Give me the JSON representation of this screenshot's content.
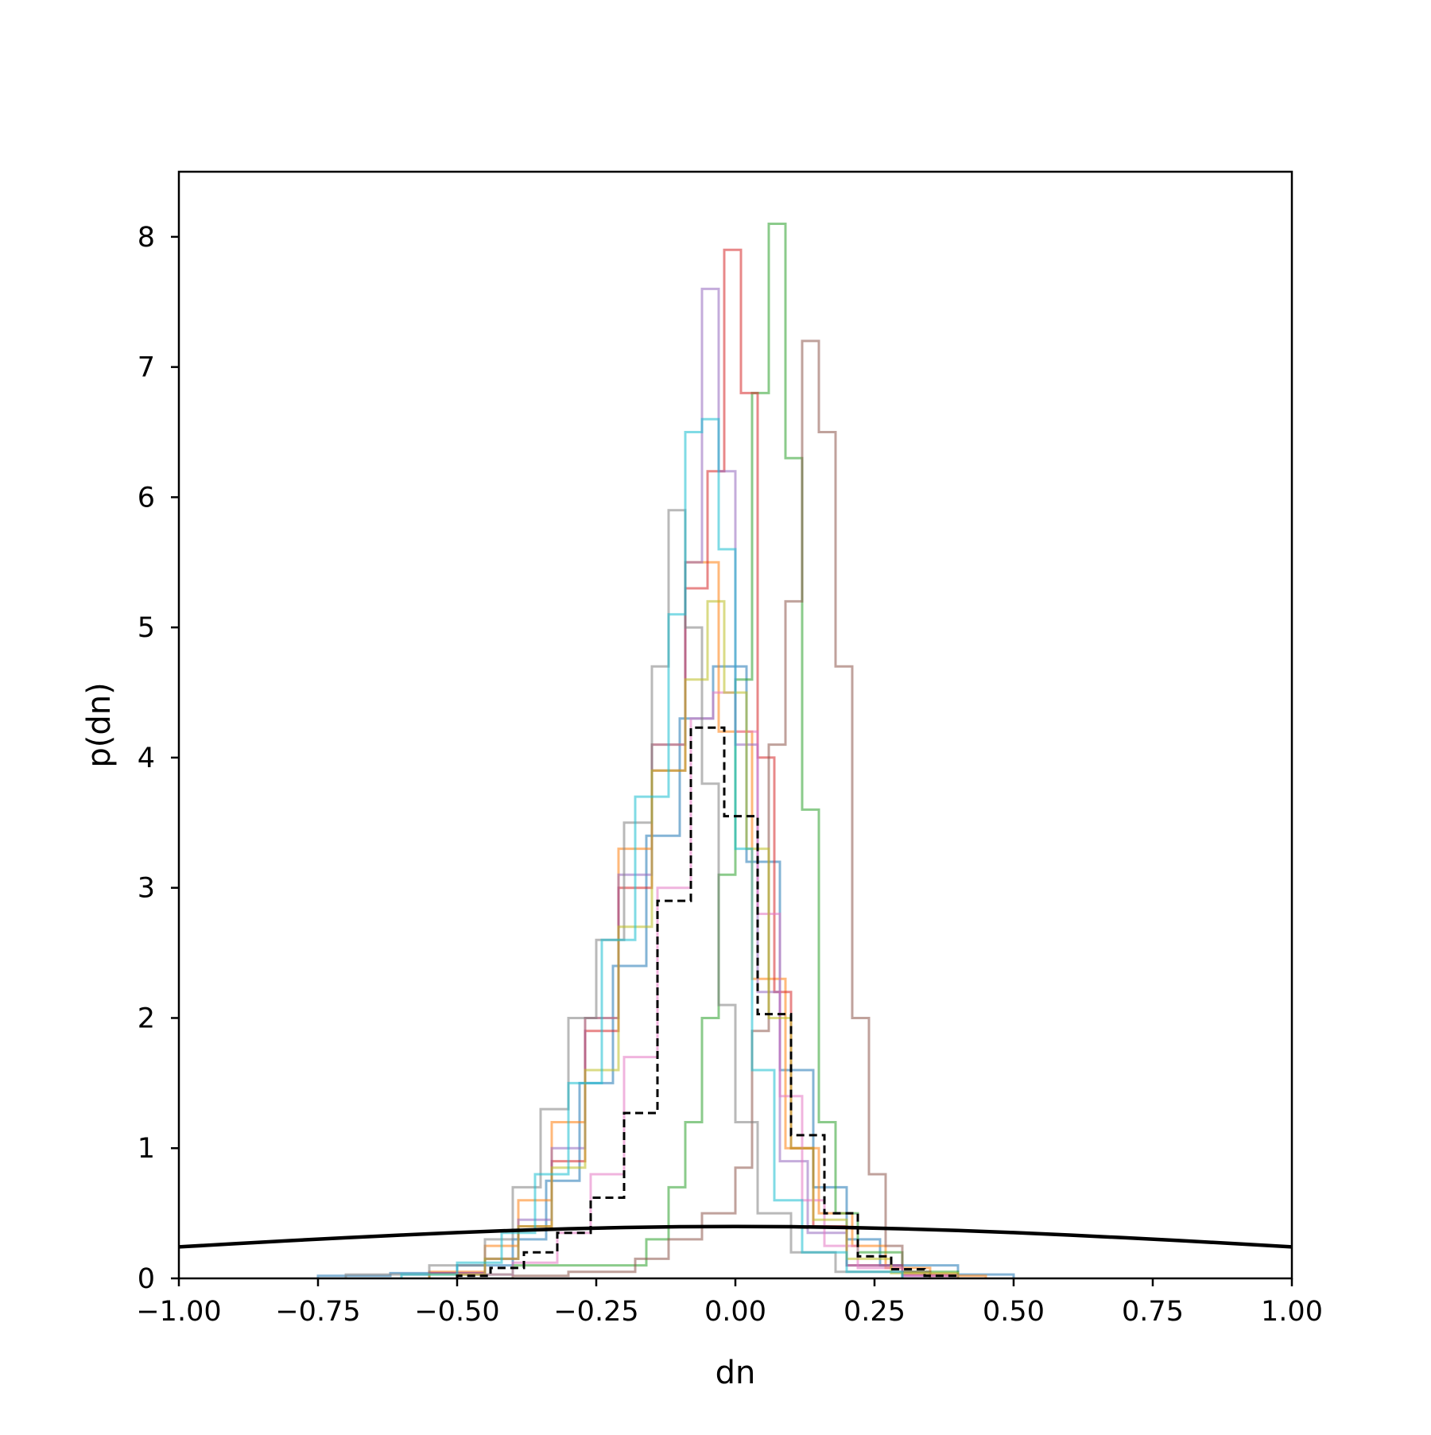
{
  "chart_data": {
    "type": "histogram",
    "xlabel": "dn",
    "ylabel": "p(dn)",
    "xlim": [
      -1.0,
      1.0
    ],
    "ylim": [
      0,
      8.5
    ],
    "grid": false,
    "x_ticks": [
      -1.0,
      -0.75,
      -0.5,
      -0.25,
      0.0,
      0.25,
      0.5,
      0.75,
      1.0
    ],
    "x_tick_labels": [
      "−1.00",
      "−0.75",
      "−0.50",
      "−0.25",
      "0.00",
      "0.25",
      "0.50",
      "0.75",
      "1.00"
    ],
    "y_ticks": [
      0,
      1,
      2,
      3,
      4,
      5,
      6,
      7,
      8
    ],
    "y_tick_labels": [
      "0",
      "1",
      "2",
      "3",
      "4",
      "5",
      "6",
      "7",
      "8"
    ],
    "step_series": [
      {
        "color": "#1f77b4",
        "bins": [
          [
            -0.75,
            -0.62,
            0.02
          ],
          [
            -0.62,
            -0.5,
            0.04
          ],
          [
            -0.5,
            -0.4,
            0.1
          ],
          [
            -0.4,
            -0.34,
            0.3
          ],
          [
            -0.34,
            -0.28,
            0.75
          ],
          [
            -0.28,
            -0.22,
            1.5
          ],
          [
            -0.22,
            -0.16,
            2.4
          ],
          [
            -0.16,
            -0.1,
            3.4
          ],
          [
            -0.1,
            -0.04,
            4.3
          ],
          [
            -0.04,
            0.02,
            4.7
          ],
          [
            0.02,
            0.08,
            3.2
          ],
          [
            0.08,
            0.14,
            1.6
          ],
          [
            0.14,
            0.2,
            0.7
          ],
          [
            0.2,
            0.26,
            0.3
          ],
          [
            0.26,
            0.4,
            0.1
          ],
          [
            0.4,
            0.5,
            0.03
          ]
        ]
      },
      {
        "color": "#ff7f0e",
        "bins": [
          [
            -0.55,
            -0.45,
            0.05
          ],
          [
            -0.45,
            -0.39,
            0.25
          ],
          [
            -0.39,
            -0.33,
            0.6
          ],
          [
            -0.33,
            -0.27,
            1.2
          ],
          [
            -0.27,
            -0.21,
            2.0
          ],
          [
            -0.21,
            -0.15,
            3.3
          ],
          [
            -0.15,
            -0.09,
            4.1
          ],
          [
            -0.09,
            -0.03,
            5.5
          ],
          [
            -0.03,
            0.03,
            4.2
          ],
          [
            0.03,
            0.09,
            2.3
          ],
          [
            0.09,
            0.15,
            1.0
          ],
          [
            0.15,
            0.21,
            0.5
          ],
          [
            0.21,
            0.27,
            0.25
          ],
          [
            0.27,
            0.35,
            0.08
          ],
          [
            0.35,
            0.45,
            0.02
          ]
        ]
      },
      {
        "color": "#2ca02c",
        "bins": [
          [
            -0.5,
            -0.4,
            0.03
          ],
          [
            -0.4,
            -0.3,
            0.1
          ],
          [
            -0.3,
            -0.16,
            0.1
          ],
          [
            -0.16,
            -0.12,
            0.3
          ],
          [
            -0.12,
            -0.09,
            0.7
          ],
          [
            -0.09,
            -0.06,
            1.2
          ],
          [
            -0.06,
            -0.03,
            2.0
          ],
          [
            -0.03,
            0.0,
            3.1
          ],
          [
            0.0,
            0.03,
            4.6
          ],
          [
            0.03,
            0.06,
            6.8
          ],
          [
            0.06,
            0.09,
            8.1
          ],
          [
            0.09,
            0.12,
            6.3
          ],
          [
            0.12,
            0.15,
            3.6
          ],
          [
            0.15,
            0.18,
            1.2
          ],
          [
            0.18,
            0.22,
            0.5
          ],
          [
            0.22,
            0.3,
            0.2
          ],
          [
            0.3,
            0.4,
            0.05
          ]
        ]
      },
      {
        "color": "#d62728",
        "bins": [
          [
            -0.55,
            -0.45,
            0.04
          ],
          [
            -0.45,
            -0.39,
            0.15
          ],
          [
            -0.39,
            -0.33,
            0.4
          ],
          [
            -0.33,
            -0.27,
            0.9
          ],
          [
            -0.27,
            -0.21,
            1.9
          ],
          [
            -0.21,
            -0.15,
            3.0
          ],
          [
            -0.15,
            -0.09,
            3.9
          ],
          [
            -0.09,
            -0.05,
            5.3
          ],
          [
            -0.05,
            -0.02,
            6.2
          ],
          [
            -0.02,
            0.01,
            7.9
          ],
          [
            0.01,
            0.04,
            6.8
          ],
          [
            0.04,
            0.07,
            4.0
          ],
          [
            0.07,
            0.1,
            2.2
          ],
          [
            0.1,
            0.14,
            1.0
          ],
          [
            0.14,
            0.2,
            0.4
          ],
          [
            0.2,
            0.3,
            0.1
          ],
          [
            0.3,
            0.4,
            0.03
          ]
        ]
      },
      {
        "color": "#9467bd",
        "bins": [
          [
            -0.55,
            -0.45,
            0.04
          ],
          [
            -0.45,
            -0.39,
            0.15
          ],
          [
            -0.39,
            -0.33,
            0.45
          ],
          [
            -0.33,
            -0.27,
            1.0
          ],
          [
            -0.27,
            -0.21,
            2.0
          ],
          [
            -0.21,
            -0.15,
            3.1
          ],
          [
            -0.15,
            -0.09,
            4.1
          ],
          [
            -0.09,
            -0.06,
            5.5
          ],
          [
            -0.06,
            -0.03,
            7.6
          ],
          [
            -0.03,
            0.0,
            6.2
          ],
          [
            0.0,
            0.04,
            4.1
          ],
          [
            0.04,
            0.08,
            2.2
          ],
          [
            0.08,
            0.13,
            0.9
          ],
          [
            0.13,
            0.2,
            0.35
          ],
          [
            0.2,
            0.3,
            0.1
          ],
          [
            0.3,
            0.4,
            0.02
          ]
        ]
      },
      {
        "color": "#8c564b",
        "bins": [
          [
            -0.4,
            -0.3,
            0.02
          ],
          [
            -0.3,
            -0.18,
            0.05
          ],
          [
            -0.18,
            -0.12,
            0.15
          ],
          [
            -0.12,
            -0.06,
            0.3
          ],
          [
            -0.06,
            0.0,
            0.5
          ],
          [
            0.0,
            0.03,
            0.85
          ],
          [
            0.03,
            0.06,
            1.9
          ],
          [
            0.06,
            0.09,
            4.1
          ],
          [
            0.09,
            0.12,
            5.2
          ],
          [
            0.12,
            0.15,
            7.2
          ],
          [
            0.15,
            0.18,
            6.5
          ],
          [
            0.18,
            0.21,
            4.7
          ],
          [
            0.21,
            0.24,
            2.0
          ],
          [
            0.24,
            0.27,
            0.8
          ],
          [
            0.27,
            0.3,
            0.25
          ],
          [
            0.3,
            0.35,
            0.05
          ]
        ]
      },
      {
        "color": "#e377c2",
        "bins": [
          [
            -0.5,
            -0.4,
            0.03
          ],
          [
            -0.4,
            -0.32,
            0.12
          ],
          [
            -0.32,
            -0.26,
            0.35
          ],
          [
            -0.26,
            -0.2,
            0.8
          ],
          [
            -0.2,
            -0.14,
            1.7
          ],
          [
            -0.14,
            -0.08,
            3.0
          ],
          [
            -0.08,
            -0.04,
            4.3
          ],
          [
            -0.04,
            0.0,
            4.5
          ],
          [
            0.0,
            0.04,
            4.2
          ],
          [
            0.04,
            0.08,
            2.8
          ],
          [
            0.08,
            0.12,
            1.4
          ],
          [
            0.12,
            0.16,
            0.6
          ],
          [
            0.16,
            0.22,
            0.25
          ],
          [
            0.22,
            0.3,
            0.08
          ],
          [
            0.3,
            0.4,
            0.02
          ]
        ]
      },
      {
        "color": "#7f7f7f",
        "bins": [
          [
            -0.7,
            -0.55,
            0.03
          ],
          [
            -0.55,
            -0.45,
            0.1
          ],
          [
            -0.45,
            -0.4,
            0.3
          ],
          [
            -0.4,
            -0.35,
            0.7
          ],
          [
            -0.35,
            -0.3,
            1.3
          ],
          [
            -0.3,
            -0.25,
            2.0
          ],
          [
            -0.25,
            -0.2,
            2.6
          ],
          [
            -0.2,
            -0.15,
            3.5
          ],
          [
            -0.15,
            -0.12,
            4.7
          ],
          [
            -0.12,
            -0.09,
            5.9
          ],
          [
            -0.09,
            -0.06,
            5.0
          ],
          [
            -0.06,
            -0.03,
            3.8
          ],
          [
            -0.03,
            0.0,
            2.1
          ],
          [
            0.0,
            0.04,
            1.2
          ],
          [
            0.04,
            0.1,
            0.5
          ],
          [
            0.1,
            0.18,
            0.2
          ],
          [
            0.18,
            0.3,
            0.05
          ]
        ]
      },
      {
        "color": "#bcbd22",
        "bins": [
          [
            -0.55,
            -0.45,
            0.03
          ],
          [
            -0.45,
            -0.39,
            0.15
          ],
          [
            -0.39,
            -0.33,
            0.4
          ],
          [
            -0.33,
            -0.27,
            0.85
          ],
          [
            -0.27,
            -0.21,
            1.6
          ],
          [
            -0.21,
            -0.15,
            2.7
          ],
          [
            -0.15,
            -0.09,
            3.9
          ],
          [
            -0.09,
            -0.05,
            4.6
          ],
          [
            -0.05,
            -0.02,
            5.2
          ],
          [
            -0.02,
            0.02,
            4.5
          ],
          [
            0.02,
            0.06,
            3.3
          ],
          [
            0.06,
            0.1,
            2.0
          ],
          [
            0.1,
            0.14,
            1.0
          ],
          [
            0.14,
            0.2,
            0.45
          ],
          [
            0.2,
            0.28,
            0.15
          ],
          [
            0.28,
            0.4,
            0.04
          ]
        ]
      },
      {
        "color": "#17becf",
        "bins": [
          [
            -0.6,
            -0.5,
            0.03
          ],
          [
            -0.5,
            -0.42,
            0.12
          ],
          [
            -0.42,
            -0.36,
            0.35
          ],
          [
            -0.36,
            -0.3,
            0.8
          ],
          [
            -0.3,
            -0.24,
            1.5
          ],
          [
            -0.24,
            -0.18,
            2.6
          ],
          [
            -0.18,
            -0.12,
            3.7
          ],
          [
            -0.12,
            -0.09,
            5.1
          ],
          [
            -0.09,
            -0.06,
            6.5
          ],
          [
            -0.06,
            -0.03,
            6.6
          ],
          [
            -0.03,
            0.0,
            5.6
          ],
          [
            0.0,
            0.03,
            3.3
          ],
          [
            0.03,
            0.07,
            1.6
          ],
          [
            0.07,
            0.12,
            0.6
          ],
          [
            0.12,
            0.2,
            0.2
          ],
          [
            0.2,
            0.3,
            0.05
          ]
        ]
      }
    ],
    "reference_histogram": {
      "style": "dashed",
      "color": "#000000",
      "bins": [
        [
          -0.5,
          -0.44,
          0.02
        ],
        [
          -0.44,
          -0.38,
          0.08
        ],
        [
          -0.38,
          -0.32,
          0.2
        ],
        [
          -0.32,
          -0.26,
          0.35
        ],
        [
          -0.26,
          -0.2,
          0.62
        ],
        [
          -0.2,
          -0.14,
          1.27
        ],
        [
          -0.14,
          -0.08,
          2.9
        ],
        [
          -0.08,
          -0.02,
          4.23
        ],
        [
          -0.02,
          0.04,
          3.55
        ],
        [
          0.04,
          0.1,
          2.03
        ],
        [
          0.1,
          0.16,
          1.1
        ],
        [
          0.16,
          0.22,
          0.5
        ],
        [
          0.22,
          0.28,
          0.17
        ],
        [
          0.28,
          0.34,
          0.07
        ],
        [
          0.34,
          0.4,
          0.02
        ]
      ]
    },
    "reference_curve": {
      "type": "line",
      "color": "#000000",
      "x": [
        -1.0,
        -0.9,
        -0.8,
        -0.7,
        -0.6,
        -0.5,
        -0.4,
        -0.3,
        -0.2,
        -0.1,
        0.0,
        0.1,
        0.2,
        0.3,
        0.4,
        0.5,
        0.6,
        0.7,
        0.8,
        0.9,
        1.0
      ],
      "y": [
        0.242,
        0.266,
        0.29,
        0.312,
        0.333,
        0.352,
        0.368,
        0.381,
        0.391,
        0.397,
        0.399,
        0.397,
        0.391,
        0.381,
        0.368,
        0.352,
        0.333,
        0.312,
        0.29,
        0.266,
        0.242
      ]
    }
  }
}
